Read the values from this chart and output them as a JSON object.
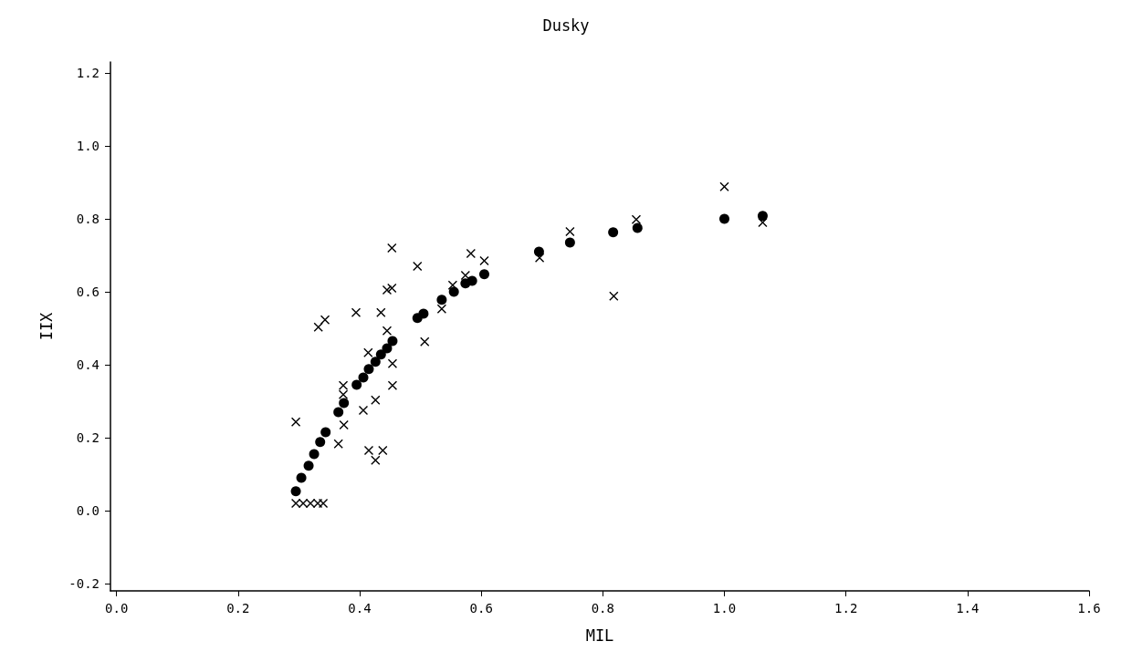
{
  "chart_data": {
    "type": "scatter",
    "title": "Dusky",
    "xlabel": "MIL",
    "ylabel": "IIX",
    "xlim": [
      -0.01,
      1.6
    ],
    "ylim": [
      -0.22,
      1.23
    ],
    "xticks": [
      {
        "value": 0,
        "label": "0.0"
      },
      0.2,
      0.4,
      0.6,
      0.8,
      {
        "value": 1,
        "label": "1.0"
      },
      1.2,
      1.4,
      1.6
    ],
    "yticks": [
      -0.2,
      {
        "value": 0,
        "label": "0.0"
      },
      0.2,
      0.4,
      0.6,
      0.8,
      {
        "value": 1,
        "label": "1.0"
      },
      1.2
    ],
    "series": [
      {
        "color": "#000000",
        "marker": "circle",
        "x": [
          0.295,
          0.304,
          0.316,
          0.325,
          0.335,
          0.344,
          0.365,
          0.374,
          0.395,
          0.406,
          0.415,
          0.426,
          0.435,
          0.445,
          0.454,
          0.495,
          0.505,
          0.535,
          0.555,
          0.574,
          0.585,
          0.605,
          0.695,
          0.746,
          0.817,
          0.857,
          1.0,
          1.063
        ],
        "values": [
          0.053,
          0.09,
          0.123,
          0.155,
          0.188,
          0.215,
          0.27,
          0.295,
          0.345,
          0.365,
          0.388,
          0.408,
          0.428,
          0.445,
          0.465,
          0.528,
          0.54,
          0.578,
          0.6,
          0.623,
          0.63,
          0.648,
          0.71,
          0.735,
          0.763,
          0.775,
          0.8,
          0.808
        ]
      },
      {
        "color": "#000000",
        "marker": "cross",
        "x": [
          0.453,
          0.495,
          0.453,
          0.445,
          0.394,
          0.435,
          0.343,
          0.332,
          0.445,
          0.507,
          0.414,
          0.454,
          0.454,
          0.373,
          0.373,
          0.426,
          0.406,
          0.374,
          0.295,
          0.365,
          0.415,
          0.438,
          0.426,
          0.295,
          0.307,
          0.319,
          0.331,
          0.34,
          0.746,
          0.583,
          0.605,
          0.574,
          0.553,
          0.535,
          0.696,
          0.855,
          1.0,
          1.063,
          0.818
        ],
        "values": [
          0.72,
          0.67,
          0.61,
          0.605,
          0.543,
          0.543,
          0.523,
          0.503,
          0.493,
          0.463,
          0.433,
          0.403,
          0.343,
          0.343,
          0.318,
          0.303,
          0.275,
          0.235,
          0.243,
          0.183,
          0.165,
          0.165,
          0.138,
          0.02,
          0.02,
          0.02,
          0.02,
          0.02,
          0.765,
          0.705,
          0.685,
          0.645,
          0.618,
          0.553,
          0.693,
          0.798,
          0.888,
          0.79,
          0.588
        ]
      }
    ]
  }
}
